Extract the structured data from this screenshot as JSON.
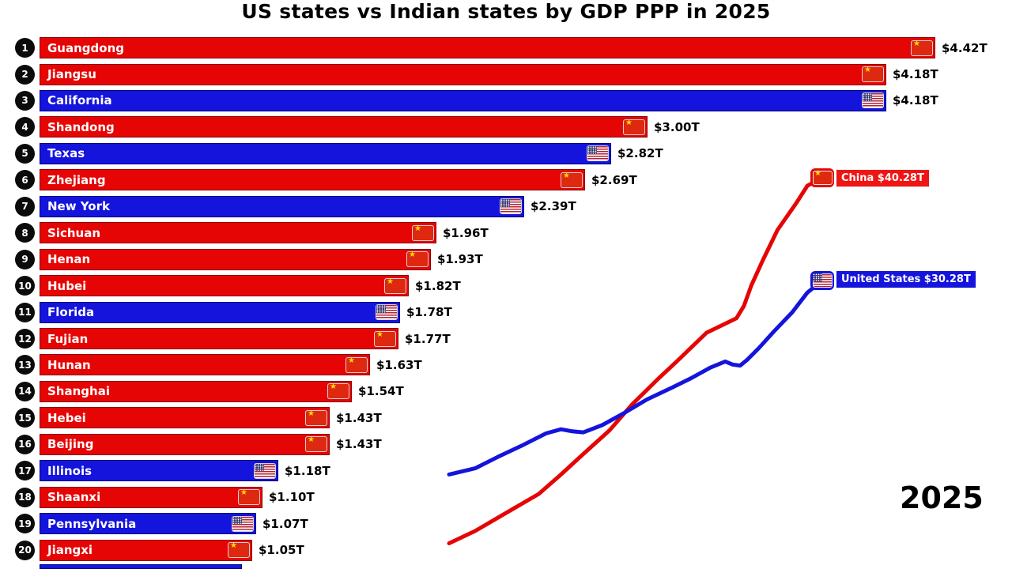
{
  "title": "US states vs Indian states by GDP PPP in 2025",
  "year_label": "2025",
  "colors": {
    "china_red": "#e60505",
    "us_blue": "#1414dc",
    "rank_circle": "#0b0b0b",
    "value_text": "#000000"
  },
  "chart_data": [
    {
      "type": "bar",
      "title": "US states vs Indian states by GDP PPP in 2025",
      "orientation": "horizontal",
      "unit": "USD trillions, PPP",
      "value_scale_max": 4.42,
      "bars": [
        {
          "rank": 1,
          "name": "Guangdong",
          "country": "China",
          "value": 4.42,
          "value_label": "$4.42T"
        },
        {
          "rank": 2,
          "name": "Jiangsu",
          "country": "China",
          "value": 4.18,
          "value_label": "$4.18T"
        },
        {
          "rank": 3,
          "name": "California",
          "country": "United States",
          "value": 4.18,
          "value_label": "$4.18T"
        },
        {
          "rank": 4,
          "name": "Shandong",
          "country": "China",
          "value": 3.0,
          "value_label": "$3.00T"
        },
        {
          "rank": 5,
          "name": "Texas",
          "country": "United States",
          "value": 2.82,
          "value_label": "$2.82T"
        },
        {
          "rank": 6,
          "name": "Zhejiang",
          "country": "China",
          "value": 2.69,
          "value_label": "$2.69T"
        },
        {
          "rank": 7,
          "name": "New York",
          "country": "United States",
          "value": 2.39,
          "value_label": "$2.39T"
        },
        {
          "rank": 8,
          "name": "Sichuan",
          "country": "China",
          "value": 1.96,
          "value_label": "$1.96T"
        },
        {
          "rank": 9,
          "name": "Henan",
          "country": "China",
          "value": 1.93,
          "value_label": "$1.93T"
        },
        {
          "rank": 10,
          "name": "Hubei",
          "country": "China",
          "value": 1.82,
          "value_label": "$1.82T"
        },
        {
          "rank": 11,
          "name": "Florida",
          "country": "United States",
          "value": 1.78,
          "value_label": "$1.78T"
        },
        {
          "rank": 12,
          "name": "Fujian",
          "country": "China",
          "value": 1.77,
          "value_label": "$1.77T"
        },
        {
          "rank": 13,
          "name": "Hunan",
          "country": "China",
          "value": 1.63,
          "value_label": "$1.63T"
        },
        {
          "rank": 14,
          "name": "Shanghai",
          "country": "China",
          "value": 1.54,
          "value_label": "$1.54T"
        },
        {
          "rank": 15,
          "name": "Hebei",
          "country": "China",
          "value": 1.43,
          "value_label": "$1.43T"
        },
        {
          "rank": 16,
          "name": "Beijing",
          "country": "China",
          "value": 1.43,
          "value_label": "$1.43T"
        },
        {
          "rank": 17,
          "name": "Illinois",
          "country": "United States",
          "value": 1.18,
          "value_label": "$1.18T"
        },
        {
          "rank": 18,
          "name": "Shaanxi",
          "country": "China",
          "value": 1.1,
          "value_label": "$1.10T"
        },
        {
          "rank": 19,
          "name": "Pennsylvania",
          "country": "United States",
          "value": 1.07,
          "value_label": "$1.07T"
        },
        {
          "rank": 20,
          "name": "Jiangxi",
          "country": "China",
          "value": 1.05,
          "value_label": "$1.05T"
        }
      ]
    },
    {
      "type": "line",
      "note": "national GDP PPP trend in USD trillions; x is fraction of timeline ending at 2025",
      "legend_position": "line-end-badges",
      "series": [
        {
          "name": "China",
          "label": "China $40.28T",
          "end_value": 40.28,
          "color": "#e60505",
          "points": [
            [
              0,
              4.7
            ],
            [
              0.07,
              5.9
            ],
            [
              0.15,
              7.6
            ],
            [
              0.24,
              9.5
            ],
            [
              0.3,
              11.4
            ],
            [
              0.36,
              13.4
            ],
            [
              0.43,
              15.7
            ],
            [
              0.49,
              18.2
            ],
            [
              0.56,
              20.7
            ],
            [
              0.61,
              22.4
            ],
            [
              0.65,
              23.8
            ],
            [
              0.69,
              25.2
            ],
            [
              0.73,
              25.9
            ],
            [
              0.77,
              26.6
            ],
            [
              0.79,
              27.8
            ],
            [
              0.81,
              29.8
            ],
            [
              0.84,
              32.2
            ],
            [
              0.88,
              35.2
            ],
            [
              0.93,
              37.8
            ],
            [
              0.96,
              39.5
            ],
            [
              1,
              40.28
            ]
          ]
        },
        {
          "name": "United States",
          "label": "United States $30.28T",
          "end_value": 30.28,
          "color": "#1414dc",
          "points": [
            [
              0,
              11.4
            ],
            [
              0.07,
              12
            ],
            [
              0.13,
              13.1
            ],
            [
              0.2,
              14.3
            ],
            [
              0.26,
              15.4
            ],
            [
              0.3,
              15.8
            ],
            [
              0.33,
              15.6
            ],
            [
              0.36,
              15.5
            ],
            [
              0.41,
              16.2
            ],
            [
              0.47,
              17.4
            ],
            [
              0.53,
              18.7
            ],
            [
              0.6,
              19.9
            ],
            [
              0.65,
              20.8
            ],
            [
              0.7,
              21.8
            ],
            [
              0.74,
              22.4
            ],
            [
              0.76,
              22.1
            ],
            [
              0.78,
              22
            ],
            [
              0.8,
              22.6
            ],
            [
              0.83,
              23.7
            ],
            [
              0.87,
              25.3
            ],
            [
              0.92,
              27.2
            ],
            [
              0.96,
              29.1
            ],
            [
              1,
              30.28
            ]
          ]
        }
      ],
      "year_label": "2025"
    }
  ]
}
